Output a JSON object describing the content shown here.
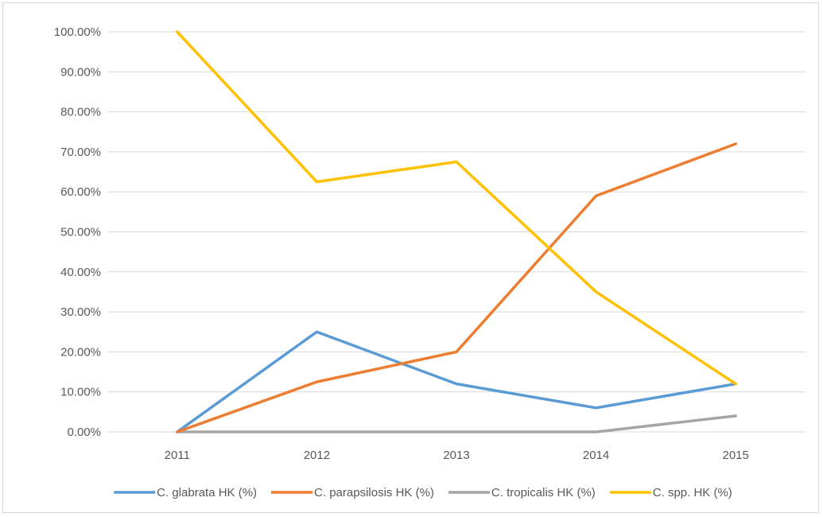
{
  "chart_data": {
    "type": "line",
    "title": "",
    "xlabel": "",
    "ylabel": "",
    "x": [
      "2011",
      "2012",
      "2013",
      "2014",
      "2015"
    ],
    "ylim": [
      0,
      100
    ],
    "y_tick_labels": [
      "0.00%",
      "10.00%",
      "20.00%",
      "30.00%",
      "40.00%",
      "50.00%",
      "60.00%",
      "70.00%",
      "80.00%",
      "90.00%",
      "100.00%"
    ],
    "grid": "horizontal",
    "legend_position": "bottom",
    "series": [
      {
        "name": "C. glabrata HK (%)",
        "color": "#5b9bd5",
        "values": [
          0,
          25,
          12,
          6,
          12
        ]
      },
      {
        "name": "C. parapsilosis HK (%)",
        "color": "#ed7d31",
        "values": [
          0,
          12.5,
          20,
          59,
          72
        ]
      },
      {
        "name": "C. tropicalis HK (%)",
        "color": "#a5a5a5",
        "values": [
          0,
          0,
          0,
          0,
          4
        ]
      },
      {
        "name": "C. spp. HK (%)",
        "color": "#ffc000",
        "values": [
          100,
          62.5,
          67.5,
          35,
          12
        ]
      }
    ]
  }
}
